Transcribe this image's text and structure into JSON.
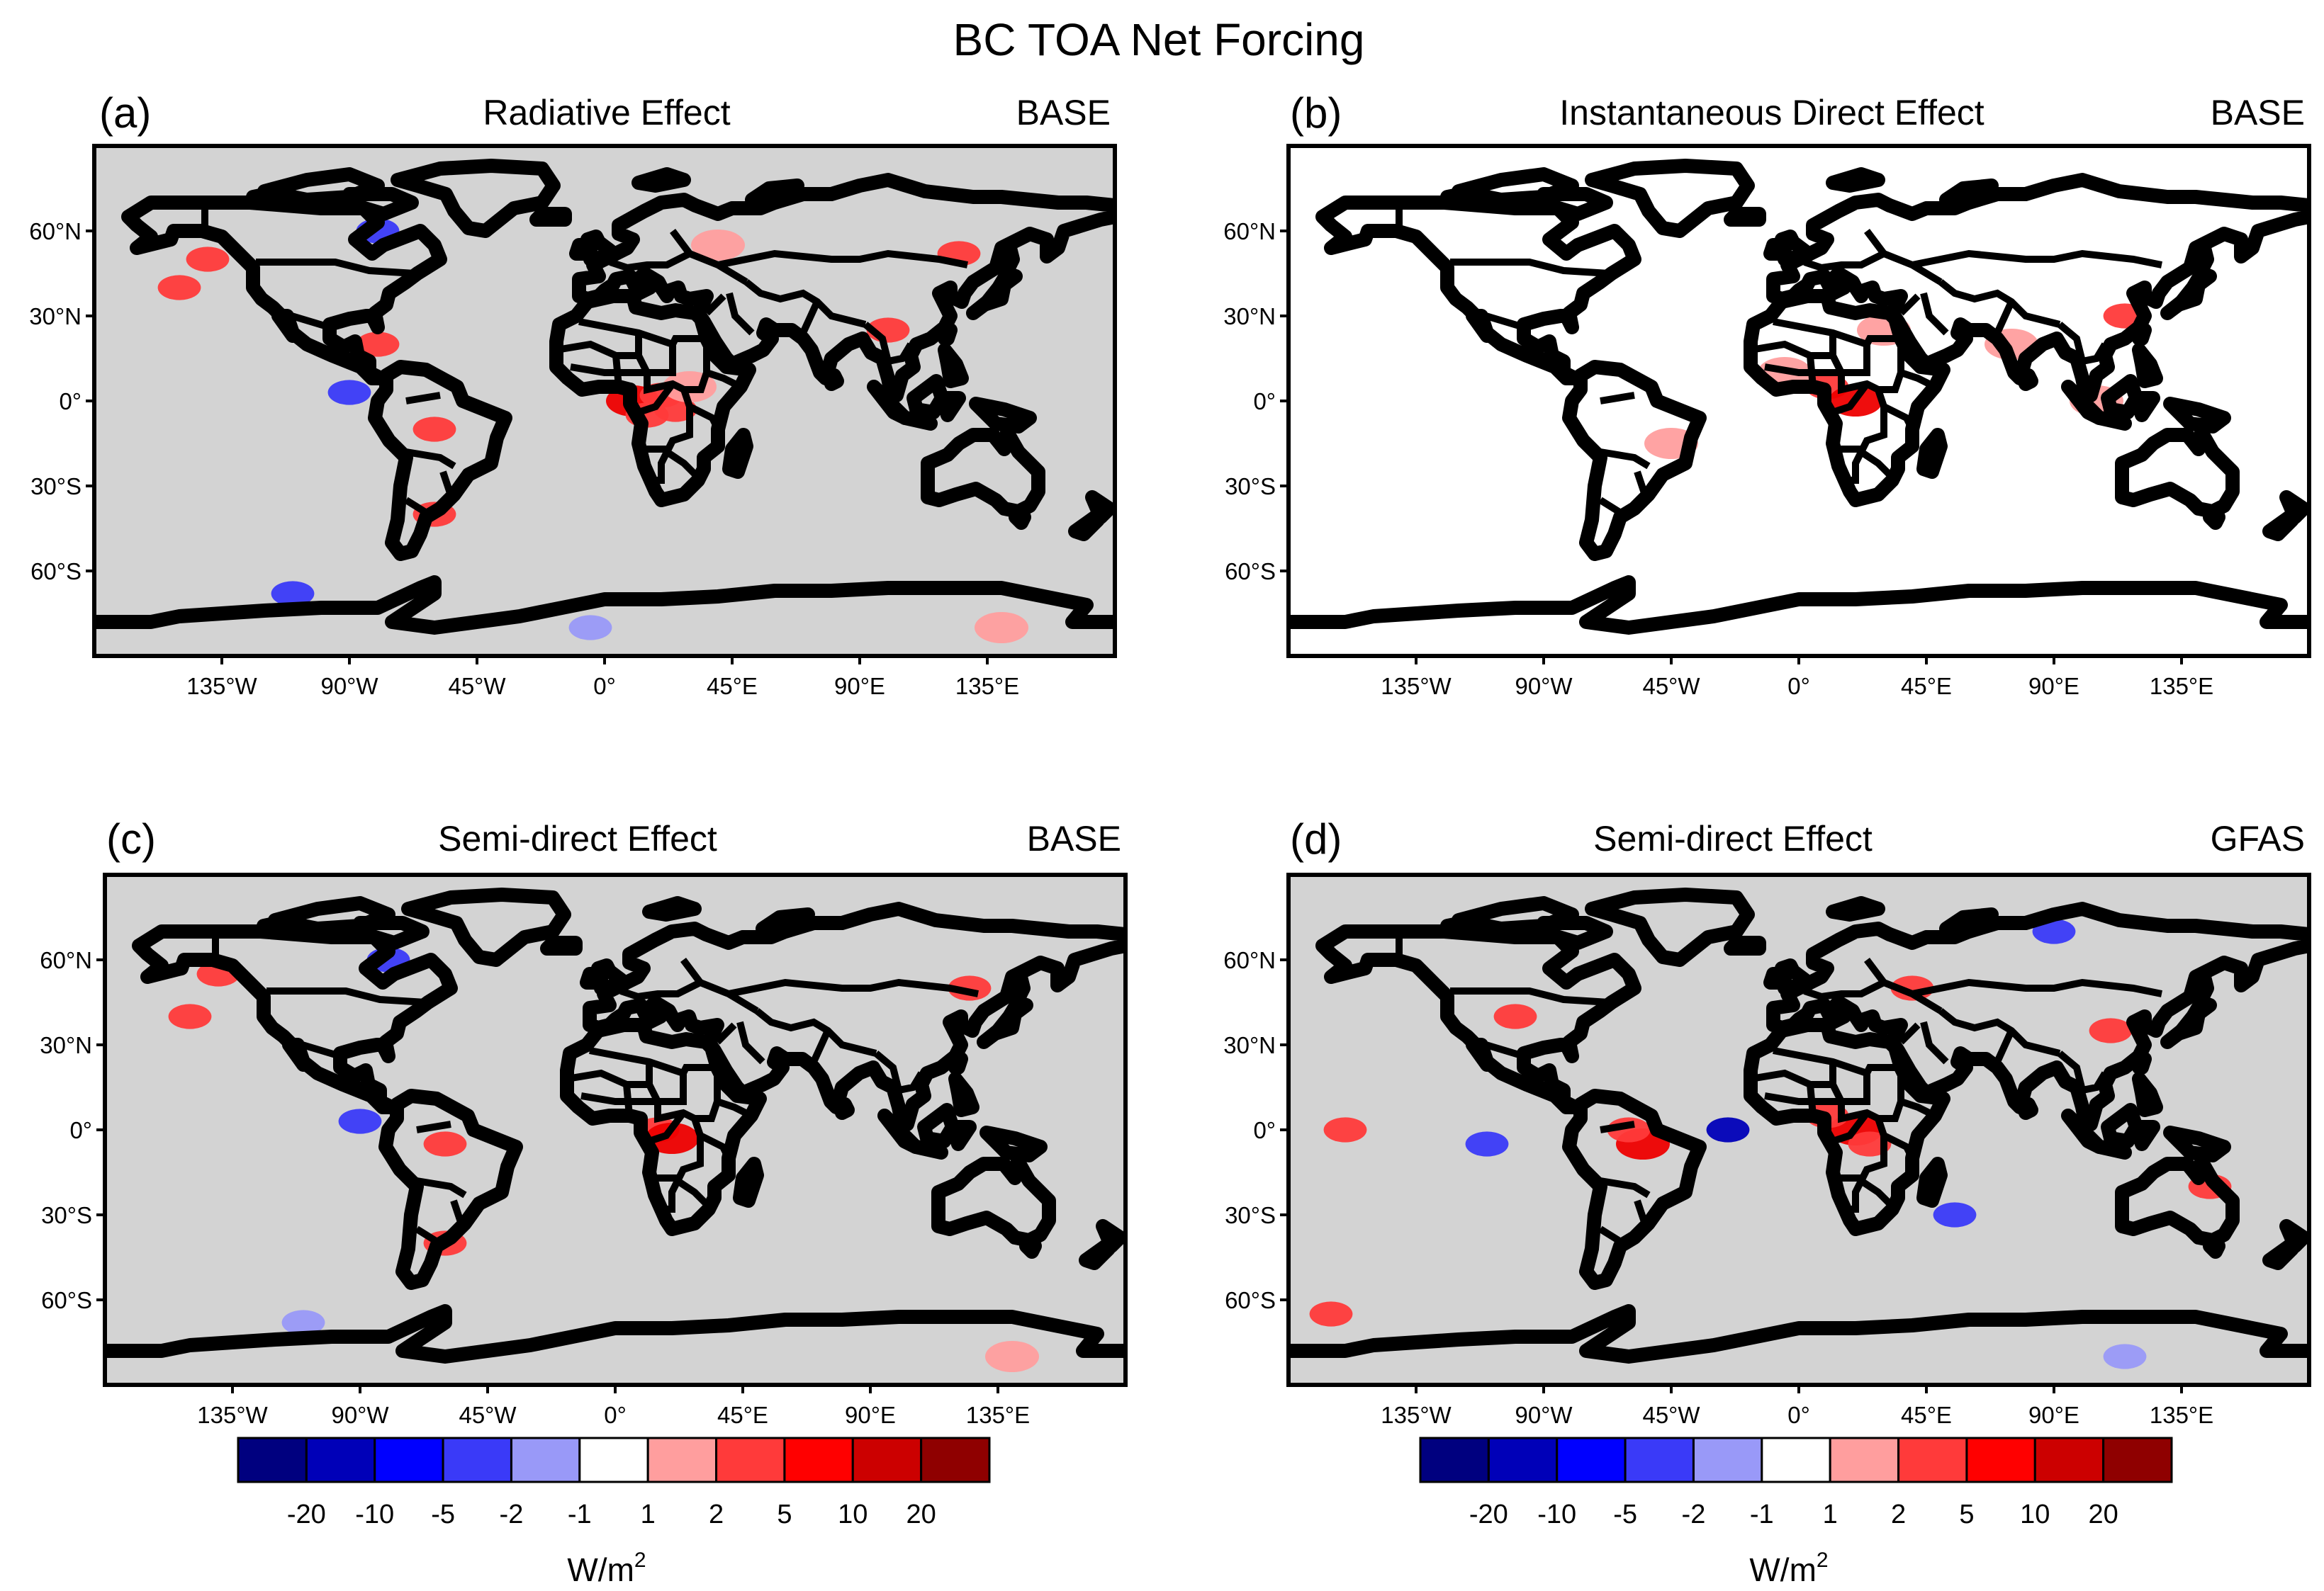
{
  "figure_title": "BC TOA Net Forcing",
  "panels": [
    {
      "label": "(a)",
      "title": "Radiative Effect",
      "dataset": "BASE",
      "background": "#d3d3d3",
      "lon_ticks": [
        "135°W",
        "90°W",
        "45°W",
        "0°",
        "45°E",
        "90°E",
        "135°E"
      ],
      "lat_ticks": [
        "60°N",
        "30°N",
        "0°",
        "30°S",
        "60°S"
      ],
      "fields": [
        {
          "lon": 10,
          "lat": 0,
          "level": "10"
        },
        {
          "lon": 20,
          "lat": 2,
          "level": "5"
        },
        {
          "lon": 25,
          "lat": -3,
          "level": "5"
        },
        {
          "lon": 15,
          "lat": -5,
          "level": "5"
        },
        {
          "lon": 30,
          "lat": 5,
          "level": "2"
        },
        {
          "lon": 125,
          "lat": 52,
          "level": "5"
        },
        {
          "lon": 40,
          "lat": 55,
          "level": "2"
        },
        {
          "lon": -90,
          "lat": 3,
          "level": "-5"
        },
        {
          "lon": -80,
          "lat": 60,
          "level": "-5"
        },
        {
          "lon": -80,
          "lat": 20,
          "level": "5"
        },
        {
          "lon": -60,
          "lat": -10,
          "level": "5"
        },
        {
          "lon": -60,
          "lat": -40,
          "level": "5"
        },
        {
          "lon": -140,
          "lat": 50,
          "level": "5"
        },
        {
          "lon": 140,
          "lat": -80,
          "level": "2"
        },
        {
          "lon": -110,
          "lat": -68,
          "level": "-5"
        },
        {
          "lon": -5,
          "lat": -80,
          "level": "-2"
        },
        {
          "lon": 100,
          "lat": 25,
          "level": "5"
        },
        {
          "lon": -150,
          "lat": 40,
          "level": "5"
        }
      ]
    },
    {
      "label": "(b)",
      "title": "Instantaneous Direct Effect",
      "dataset": "BASE",
      "background": "#ffffff",
      "lon_ticks": [
        "135°W",
        "90°W",
        "45°W",
        "0°",
        "45°E",
        "90°E",
        "135°E"
      ],
      "lat_ticks": [
        "60°N",
        "30°N",
        "0°",
        "30°S",
        "60°S"
      ],
      "fields": [
        {
          "lon": -5,
          "lat": 10,
          "level": "2"
        },
        {
          "lon": 10,
          "lat": 5,
          "level": "5"
        },
        {
          "lon": 20,
          "lat": 0,
          "level": "10"
        },
        {
          "lon": 30,
          "lat": 25,
          "level": "2"
        },
        {
          "lon": 75,
          "lat": 20,
          "level": "2"
        },
        {
          "lon": 115,
          "lat": 30,
          "level": "5"
        },
        {
          "lon": -45,
          "lat": -15,
          "level": "2"
        },
        {
          "lon": 105,
          "lat": 0,
          "level": "2"
        }
      ]
    },
    {
      "label": "(c)",
      "title": "Semi-direct Effect",
      "dataset": "BASE",
      "background": "#d3d3d3",
      "lon_ticks": [
        "135°W",
        "90°W",
        "45°W",
        "0°",
        "45°E",
        "90°E",
        "135°E"
      ],
      "lat_ticks": [
        "60°N",
        "30°N",
        "0°",
        "30°S",
        "60°S"
      ],
      "fields": [
        {
          "lon": 15,
          "lat": 0,
          "level": "5"
        },
        {
          "lon": 20,
          "lat": -3,
          "level": "10"
        },
        {
          "lon": -60,
          "lat": -5,
          "level": "5"
        },
        {
          "lon": -60,
          "lat": -40,
          "level": "5"
        },
        {
          "lon": -80,
          "lat": 60,
          "level": "-5"
        },
        {
          "lon": -90,
          "lat": 3,
          "level": "-5"
        },
        {
          "lon": -140,
          "lat": 55,
          "level": "5"
        },
        {
          "lon": 140,
          "lat": -80,
          "level": "2"
        },
        {
          "lon": 125,
          "lat": 50,
          "level": "5"
        },
        {
          "lon": -110,
          "lat": -68,
          "level": "-2"
        },
        {
          "lon": -150,
          "lat": 40,
          "level": "5"
        }
      ]
    },
    {
      "label": "(d)",
      "title": "Semi-direct Effect",
      "dataset": "GFAS",
      "background": "#d3d3d3",
      "lon_ticks": [
        "135°W",
        "90°W",
        "45°W",
        "0°",
        "45°E",
        "90°E",
        "135°E"
      ],
      "lat_ticks": [
        "60°N",
        "30°N",
        "0°",
        "30°S",
        "60°S"
      ],
      "fields": [
        {
          "lon": 20,
          "lat": 0,
          "level": "10"
        },
        {
          "lon": 25,
          "lat": -5,
          "level": "5"
        },
        {
          "lon": 10,
          "lat": 5,
          "level": "5"
        },
        {
          "lon": -55,
          "lat": -5,
          "level": "10"
        },
        {
          "lon": -60,
          "lat": 0,
          "level": "5"
        },
        {
          "lon": -100,
          "lat": 40,
          "level": "5"
        },
        {
          "lon": 40,
          "lat": 50,
          "level": "5"
        },
        {
          "lon": 110,
          "lat": 35,
          "level": "5"
        },
        {
          "lon": -25,
          "lat": 0,
          "level": "-10"
        },
        {
          "lon": -110,
          "lat": -5,
          "level": "-5"
        },
        {
          "lon": 90,
          "lat": 70,
          "level": "-5"
        },
        {
          "lon": -165,
          "lat": -65,
          "level": "5"
        },
        {
          "lon": 115,
          "lat": -80,
          "level": "-2"
        },
        {
          "lon": 55,
          "lat": -30,
          "level": "-5"
        },
        {
          "lon": 145,
          "lat": -20,
          "level": "5"
        },
        {
          "lon": -160,
          "lat": 0,
          "level": "5"
        }
      ]
    }
  ],
  "colorbar": {
    "units_base": "W/m",
    "units_exp": "2",
    "tick_labels": [
      "-20",
      "-10",
      "-5",
      "-2",
      "-1",
      "1",
      "2",
      "5",
      "10",
      "20"
    ],
    "colors": [
      "#00007f",
      "#0000b8",
      "#0000ff",
      "#3a3af8",
      "#9999f8",
      "#ffffff",
      "#ff9e9e",
      "#ff3a3a",
      "#ff0000",
      "#cc0000",
      "#8f0000"
    ]
  },
  "level_colors": {
    "-10": "#0000b8",
    "-5": "#3a3af8",
    "-2": "#9999f8",
    "2": "#ff9e9e",
    "5": "#ff3a3a",
    "10": "#ee0000"
  }
}
